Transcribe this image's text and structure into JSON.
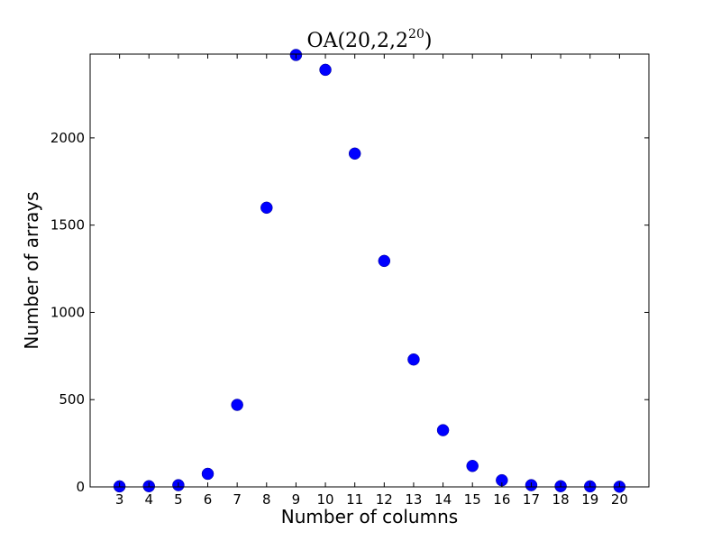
{
  "chart_data": {
    "type": "scatter",
    "title": {
      "prefix": "OA(20,2,2",
      "superscript": "20",
      "suffix": ")"
    },
    "xlabel": "Number of columns",
    "ylabel": "Number of arrays",
    "x": [
      3,
      4,
      5,
      6,
      7,
      8,
      9,
      10,
      11,
      12,
      13,
      14,
      15,
      16,
      17,
      18,
      19,
      20
    ],
    "y": [
      3,
      4,
      10,
      75,
      470,
      1600,
      2475,
      2390,
      1910,
      1295,
      730,
      325,
      120,
      38,
      10,
      4,
      3,
      1
    ],
    "xlim": [
      2,
      21
    ],
    "ylim": [
      0,
      2480
    ],
    "xticks": [
      3,
      4,
      5,
      6,
      7,
      8,
      9,
      10,
      11,
      12,
      13,
      14,
      15,
      16,
      17,
      18,
      19,
      20
    ],
    "yticks": [
      0,
      500,
      1000,
      1500,
      2000
    ],
    "marker_color": "#0000ff",
    "grid": false,
    "legend": "none"
  }
}
